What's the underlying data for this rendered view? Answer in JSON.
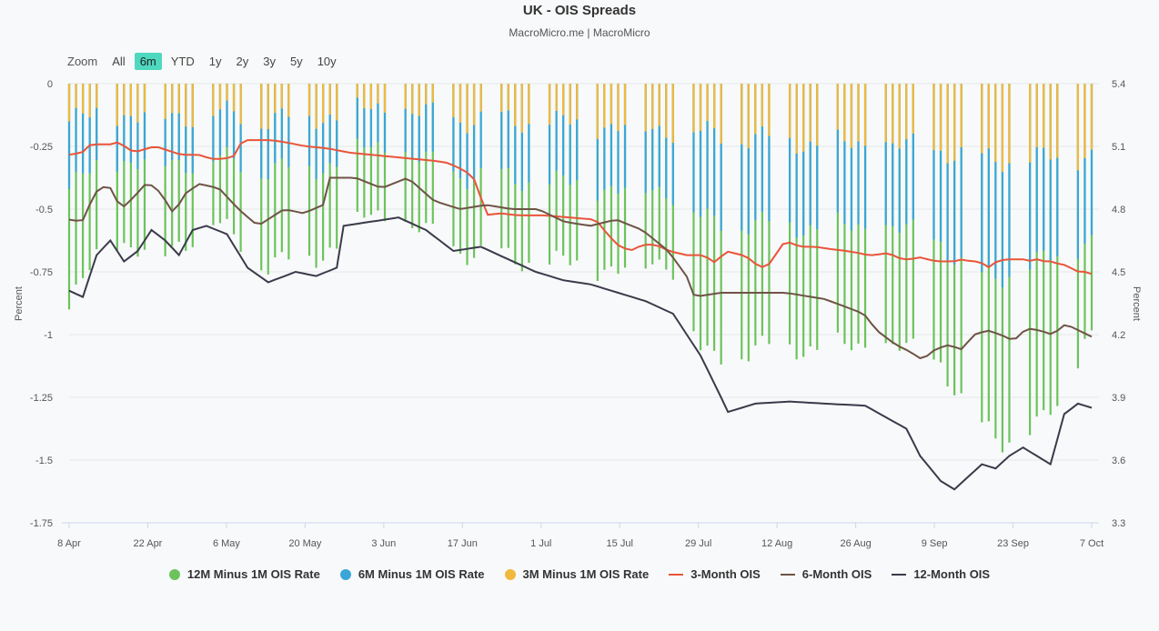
{
  "header": {
    "title": "UK - OIS Spreads",
    "subtitle": "MacroMicro.me | MacroMicro"
  },
  "zoom": {
    "label": "Zoom",
    "options": [
      "All",
      "6m",
      "YTD",
      "1y",
      "2y",
      "3y",
      "5y",
      "10y"
    ],
    "active": "6m"
  },
  "legend": [
    {
      "label": "12M Minus 1M OIS Rate",
      "color": "#6cc35c",
      "kind": "dot"
    },
    {
      "label": "6M Minus 1M OIS Rate",
      "color": "#3aa6d8",
      "kind": "dot"
    },
    {
      "label": "3M Minus 1M OIS Rate",
      "color": "#f0b93e",
      "kind": "dot"
    },
    {
      "label": "3-Month OIS",
      "color": "#e8553a",
      "kind": "line"
    },
    {
      "label": "6-Month OIS",
      "color": "#6e5446",
      "kind": "line"
    },
    {
      "label": "12-Month OIS",
      "color": "#3b3a4a",
      "kind": "line"
    }
  ],
  "chart_data": {
    "type": "bar+line",
    "title": "UK - OIS Spreads",
    "x_tick_labels": [
      "8 Apr",
      "22 Apr",
      "6 May",
      "20 May",
      "3 Jun",
      "17 Jun",
      "1 Jul",
      "15 Jul",
      "29 Jul",
      "12 Aug",
      "26 Aug",
      "9 Sep",
      "23 Sep",
      "7 Oct"
    ],
    "y_left": {
      "label": "Percent",
      "range": [
        -1.75,
        0
      ],
      "ticks": [
        "0",
        "-0.25",
        "-0.5",
        "-0.75",
        "-1",
        "-1.25",
        "-1.5",
        "-1.75"
      ],
      "tick_values": [
        0,
        -0.25,
        -0.5,
        -0.75,
        -1,
        -1.25,
        -1.5,
        -1.75
      ]
    },
    "y_right": {
      "label": "Percent",
      "range": [
        3.3,
        5.4
      ],
      "ticks": [
        "5.4",
        "5.1",
        "4.8",
        "4.5",
        "4.2",
        "3.9",
        "3.6",
        "3.3"
      ],
      "tick_values": [
        5.4,
        5.1,
        4.8,
        4.5,
        4.2,
        3.9,
        3.6,
        3.3
      ]
    },
    "bar_series": [
      {
        "name": "12M Minus 1M OIS Rate",
        "axis": "left",
        "anchors": [
          [
            0,
            -0.9
          ],
          [
            5,
            -0.6
          ],
          [
            11,
            -0.7
          ],
          [
            18,
            -0.55
          ],
          [
            25,
            -0.72
          ],
          [
            32,
            -0.68
          ],
          [
            38,
            -0.52
          ],
          [
            44,
            -0.58
          ],
          [
            49,
            -0.66
          ],
          [
            56,
            -0.7
          ],
          [
            63,
            -0.72
          ],
          [
            70,
            -0.74
          ],
          [
            76,
            -0.7
          ],
          [
            80,
            -1.1
          ],
          [
            88,
            -1.05
          ],
          [
            96,
            -1.05
          ],
          [
            104,
            -1.05
          ],
          [
            110,
            -1.1
          ],
          [
            114,
            -1.35
          ],
          [
            118,
            -1.42
          ],
          [
            122,
            -1.38
          ],
          [
            126,
            -1.25
          ],
          [
            128,
            -1.0
          ]
        ]
      },
      {
        "name": "6M Minus 1M OIS Rate",
        "axis": "left",
        "anchors": [
          [
            0,
            -0.42
          ],
          [
            5,
            -0.3
          ],
          [
            11,
            -0.32
          ],
          [
            18,
            -0.3
          ],
          [
            25,
            -0.34
          ],
          [
            32,
            -0.33
          ],
          [
            38,
            -0.25
          ],
          [
            44,
            -0.3
          ],
          [
            49,
            -0.36
          ],
          [
            56,
            -0.38
          ],
          [
            63,
            -0.4
          ],
          [
            70,
            -0.42
          ],
          [
            76,
            -0.42
          ],
          [
            80,
            -0.55
          ],
          [
            88,
            -0.56
          ],
          [
            96,
            -0.57
          ],
          [
            104,
            -0.58
          ],
          [
            110,
            -0.62
          ],
          [
            114,
            -0.78
          ],
          [
            118,
            -0.76
          ],
          [
            122,
            -0.72
          ],
          [
            126,
            -0.68
          ],
          [
            128,
            -0.62
          ]
        ]
      },
      {
        "name": "3M Minus 1M OIS Rate",
        "axis": "left",
        "anchors": [
          [
            0,
            -0.15
          ],
          [
            5,
            -0.12
          ],
          [
            11,
            -0.13
          ],
          [
            18,
            -0.12
          ],
          [
            25,
            -0.14
          ],
          [
            32,
            -0.13
          ],
          [
            38,
            -0.1
          ],
          [
            44,
            -0.12
          ],
          [
            49,
            -0.14
          ],
          [
            56,
            -0.15
          ],
          [
            63,
            -0.16
          ],
          [
            70,
            -0.17
          ],
          [
            76,
            -0.18
          ],
          [
            80,
            -0.2
          ],
          [
            88,
            -0.22
          ],
          [
            96,
            -0.24
          ],
          [
            104,
            -0.25
          ],
          [
            110,
            -0.26
          ],
          [
            114,
            -0.3
          ],
          [
            118,
            -0.3
          ],
          [
            122,
            -0.3
          ],
          [
            126,
            -0.3
          ],
          [
            128,
            -0.28
          ]
        ]
      }
    ],
    "line_series": [
      {
        "name": "3-Month OIS",
        "axis": "right",
        "anchors": [
          [
            0,
            5.06
          ],
          [
            3,
            5.07
          ],
          [
            5,
            5.11
          ],
          [
            10,
            5.11
          ],
          [
            11,
            5.12
          ],
          [
            13,
            5.1
          ],
          [
            15,
            5.07
          ],
          [
            18,
            5.09
          ],
          [
            20,
            5.1
          ],
          [
            23,
            5.08
          ],
          [
            26,
            5.06
          ],
          [
            30,
            5.06
          ],
          [
            33,
            5.04
          ],
          [
            36,
            5.04
          ],
          [
            39,
            5.06
          ],
          [
            40,
            5.13
          ],
          [
            47,
            5.13
          ],
          [
            50,
            5.12
          ],
          [
            55,
            5.1
          ],
          [
            60,
            5.09
          ],
          [
            65,
            5.07
          ],
          [
            70,
            5.06
          ],
          [
            75,
            5.05
          ],
          [
            80,
            5.04
          ],
          [
            85,
            5.03
          ],
          [
            88,
            5.02
          ],
          [
            92,
            4.98
          ],
          [
            95,
            4.92
          ],
          [
            96,
            4.77
          ],
          [
            100,
            4.78
          ],
          [
            104,
            4.77
          ],
          [
            110,
            4.77
          ],
          [
            116,
            4.76
          ],
          [
            122,
            4.75
          ],
          [
            124,
            4.7
          ],
          [
            127,
            4.63
          ],
          [
            130,
            4.6
          ],
          [
            133,
            4.63
          ],
          [
            136,
            4.63
          ],
          [
            139,
            4.6
          ],
          [
            141,
            4.59
          ],
          [
            143,
            4.58
          ],
          [
            147,
            4.58
          ],
          [
            150,
            4.54
          ],
          [
            152,
            4.6
          ],
          [
            154,
            4.59
          ],
          [
            156,
            4.58
          ],
          [
            158,
            4.56
          ],
          [
            160,
            4.52
          ],
          [
            162,
            4.53
          ],
          [
            164,
            4.59
          ],
          [
            166,
            4.65
          ],
          [
            168,
            4.63
          ],
          [
            170,
            4.62
          ],
          [
            173,
            4.62
          ],
          [
            176,
            4.61
          ],
          [
            180,
            4.6
          ],
          [
            183,
            4.59
          ],
          [
            185,
            4.58
          ],
          [
            187,
            4.58
          ],
          [
            189,
            4.59
          ],
          [
            191,
            4.58
          ],
          [
            193,
            4.56
          ],
          [
            195,
            4.56
          ],
          [
            197,
            4.57
          ],
          [
            199,
            4.56
          ],
          [
            201,
            4.55
          ],
          [
            203,
            4.55
          ],
          [
            205,
            4.55
          ],
          [
            207,
            4.56
          ],
          [
            209,
            4.55
          ],
          [
            211,
            4.55
          ],
          [
            213,
            4.52
          ],
          [
            215,
            4.55
          ],
          [
            217,
            4.56
          ],
          [
            218,
            4.56
          ],
          [
            219,
            4.56
          ],
          [
            220,
            4.56
          ],
          [
            221,
            4.56
          ],
          [
            222,
            4.56
          ],
          [
            223,
            4.55
          ],
          [
            224,
            4.56
          ],
          [
            225,
            4.56
          ],
          [
            226,
            4.55
          ],
          [
            227,
            4.55
          ],
          [
            228,
            4.55
          ],
          [
            229,
            4.54
          ],
          [
            230,
            4.54
          ],
          [
            231,
            4.53
          ],
          [
            232,
            4.52
          ],
          [
            233,
            4.51
          ],
          [
            234,
            4.5
          ],
          [
            235,
            4.5
          ],
          [
            236,
            4.5
          ],
          [
            237,
            4.49
          ]
        ]
      },
      {
        "name": "6-Month OIS",
        "axis": "right",
        "anchors": [
          [
            0,
            4.75
          ],
          [
            2,
            4.74
          ],
          [
            4,
            4.88
          ],
          [
            6,
            4.92
          ],
          [
            8,
            4.8
          ],
          [
            10,
            4.86
          ],
          [
            12,
            4.93
          ],
          [
            14,
            4.88
          ],
          [
            16,
            4.78
          ],
          [
            18,
            4.88
          ],
          [
            20,
            4.92
          ],
          [
            23,
            4.9
          ],
          [
            26,
            4.8
          ],
          [
            29,
            4.72
          ],
          [
            33,
            4.8
          ],
          [
            36,
            4.78
          ],
          [
            39,
            4.82
          ],
          [
            40,
            4.95
          ],
          [
            44,
            4.95
          ],
          [
            48,
            4.9
          ],
          [
            52,
            4.95
          ],
          [
            56,
            4.84
          ],
          [
            60,
            4.8
          ],
          [
            64,
            4.82
          ],
          [
            68,
            4.8
          ],
          [
            72,
            4.8
          ],
          [
            76,
            4.74
          ],
          [
            80,
            4.72
          ],
          [
            84,
            4.75
          ],
          [
            88,
            4.7
          ],
          [
            92,
            4.6
          ],
          [
            95,
            4.47
          ],
          [
            96,
            4.38
          ],
          [
            100,
            4.4
          ],
          [
            105,
            4.4
          ],
          [
            110,
            4.4
          ],
          [
            116,
            4.37
          ],
          [
            122,
            4.3
          ],
          [
            124,
            4.22
          ],
          [
            127,
            4.15
          ],
          [
            129,
            4.12
          ],
          [
            131,
            4.08
          ],
          [
            133,
            4.13
          ],
          [
            135,
            4.15
          ],
          [
            137,
            4.13
          ],
          [
            139,
            4.2
          ],
          [
            141,
            4.22
          ],
          [
            143,
            4.2
          ],
          [
            145,
            4.17
          ],
          [
            147,
            4.23
          ],
          [
            149,
            4.22
          ],
          [
            151,
            4.2
          ],
          [
            153,
            4.25
          ],
          [
            155,
            4.22
          ],
          [
            157,
            4.19
          ]
        ]
      },
      {
        "name": "12-Month OIS",
        "axis": "right",
        "anchors": [
          [
            0,
            4.41
          ],
          [
            2,
            4.38
          ],
          [
            4,
            4.58
          ],
          [
            6,
            4.65
          ],
          [
            8,
            4.55
          ],
          [
            10,
            4.6
          ],
          [
            12,
            4.7
          ],
          [
            14,
            4.65
          ],
          [
            16,
            4.58
          ],
          [
            18,
            4.7
          ],
          [
            20,
            4.72
          ],
          [
            23,
            4.68
          ],
          [
            26,
            4.52
          ],
          [
            29,
            4.45
          ],
          [
            33,
            4.5
          ],
          [
            36,
            4.48
          ],
          [
            39,
            4.52
          ],
          [
            40,
            4.72
          ],
          [
            44,
            4.74
          ],
          [
            48,
            4.76
          ],
          [
            52,
            4.7
          ],
          [
            56,
            4.6
          ],
          [
            60,
            4.62
          ],
          [
            64,
            4.56
          ],
          [
            68,
            4.5
          ],
          [
            72,
            4.46
          ],
          [
            76,
            4.44
          ],
          [
            80,
            4.4
          ],
          [
            84,
            4.36
          ],
          [
            88,
            4.3
          ],
          [
            92,
            4.1
          ],
          [
            95,
            3.9
          ],
          [
            96,
            3.83
          ],
          [
            100,
            3.87
          ],
          [
            105,
            3.88
          ],
          [
            110,
            3.87
          ],
          [
            116,
            3.86
          ],
          [
            122,
            3.75
          ],
          [
            124,
            3.62
          ],
          [
            127,
            3.5
          ],
          [
            129,
            3.46
          ],
          [
            131,
            3.52
          ],
          [
            133,
            3.58
          ],
          [
            135,
            3.56
          ],
          [
            137,
            3.62
          ],
          [
            139,
            3.66
          ],
          [
            141,
            3.62
          ],
          [
            143,
            3.58
          ],
          [
            145,
            3.82
          ],
          [
            147,
            3.87
          ],
          [
            149,
            3.85
          ]
        ]
      }
    ],
    "n_points": 150
  }
}
